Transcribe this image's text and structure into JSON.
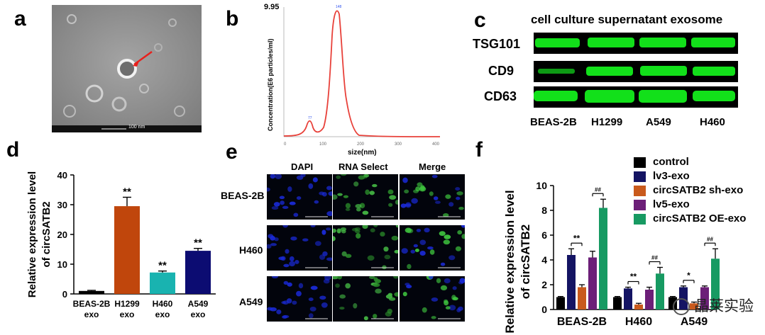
{
  "panels": {
    "a": {
      "letter": "a",
      "scale_label": "100 nm"
    },
    "b": {
      "letter": "b"
    },
    "c": {
      "letter": "c"
    },
    "d": {
      "letter": "d"
    },
    "e": {
      "letter": "e"
    },
    "f": {
      "letter": "f"
    }
  },
  "panel_b": {
    "ymax_label": "9.95",
    "ylabel": "Concentration(E6 particles/ml)",
    "xlabel": "size(nm)",
    "x_ticks": [
      "0",
      "100",
      "200",
      "300",
      "400"
    ],
    "peak_labels": [
      "77",
      "148"
    ],
    "color": "#e8413a"
  },
  "panel_c": {
    "title": "cell culture supernatant exosome",
    "markers": [
      "TSG101",
      "CD9",
      "CD63"
    ],
    "lanes": [
      "BEAS-2B",
      "H1299",
      "A549",
      "H460"
    ],
    "band_color": "#12e01a"
  },
  "panel_e": {
    "columns": [
      "DAPI",
      "RNA Select",
      "Merge"
    ],
    "rows": [
      "BEAS-2B",
      "H460",
      "A549"
    ]
  },
  "watermark": "晶莱实验",
  "chart_data": [
    {
      "type": "bar",
      "panel": "d",
      "categories": [
        "BEAS-2B exo",
        "H1299 exo",
        "H460 exo",
        "A549 exo"
      ],
      "category_lines": [
        [
          "BEAS-2B",
          "exo"
        ],
        [
          "H1299",
          "exo"
        ],
        [
          "H460",
          "exo"
        ],
        [
          "A549",
          "exo"
        ]
      ],
      "values": [
        1.0,
        29.5,
        7.2,
        14.5
      ],
      "errors": [
        0.2,
        3.0,
        0.5,
        0.8
      ],
      "significance": [
        "",
        "**",
        "**",
        "**"
      ],
      "colors": [
        "#000000",
        "#c0460c",
        "#19b3b0",
        "#0c0c72"
      ],
      "ylabel_lines": [
        "Relative expression level",
        "of circSATB2"
      ],
      "ylim": [
        0,
        40
      ],
      "yticks": [
        0,
        10,
        20,
        30,
        40
      ]
    },
    {
      "type": "bar",
      "panel": "f",
      "categories": [
        "BEAS-2B",
        "H460",
        "A549"
      ],
      "series": [
        {
          "name": "control",
          "color": "#000000",
          "values": [
            1.0,
            1.0,
            1.0
          ],
          "errors": [
            0.05,
            0.05,
            0.05
          ]
        },
        {
          "name": "lv3-exo",
          "color": "#141463",
          "values": [
            4.4,
            1.7,
            1.8
          ],
          "errors": [
            0.5,
            0.1,
            0.1
          ]
        },
        {
          "name": "circSATB2 sh-exo",
          "color": "#c95a1c",
          "values": [
            1.8,
            0.4,
            0.5
          ],
          "errors": [
            0.2,
            0.1,
            0.1
          ]
        },
        {
          "name": "lv5-exo",
          "color": "#6c1f78",
          "values": [
            4.2,
            1.6,
            1.8
          ],
          "errors": [
            0.5,
            0.2,
            0.1
          ]
        },
        {
          "name": "circSATB2 OE-exo",
          "color": "#179a62",
          "values": [
            8.2,
            2.9,
            4.1
          ],
          "errors": [
            0.7,
            0.5,
            0.8
          ]
        }
      ],
      "annotations": [
        {
          "group": 0,
          "kind": "pair_lv3_sh",
          "text": "**"
        },
        {
          "group": 0,
          "kind": "pair_lv5_oe",
          "text": "##"
        },
        {
          "group": 1,
          "kind": "pair_lv3_sh",
          "text": "**"
        },
        {
          "group": 1,
          "kind": "pair_lv5_oe",
          "text": "##"
        },
        {
          "group": 2,
          "kind": "pair_lv3_sh",
          "text": "*"
        },
        {
          "group": 2,
          "kind": "pair_lv5_oe",
          "text": "##"
        }
      ],
      "ylabel_lines": [
        "Relative expression level",
        "of circSATB2"
      ],
      "ylim": [
        0,
        10
      ],
      "yticks": [
        0,
        2,
        4,
        6,
        8,
        10
      ],
      "legend_position": "top-right"
    }
  ]
}
